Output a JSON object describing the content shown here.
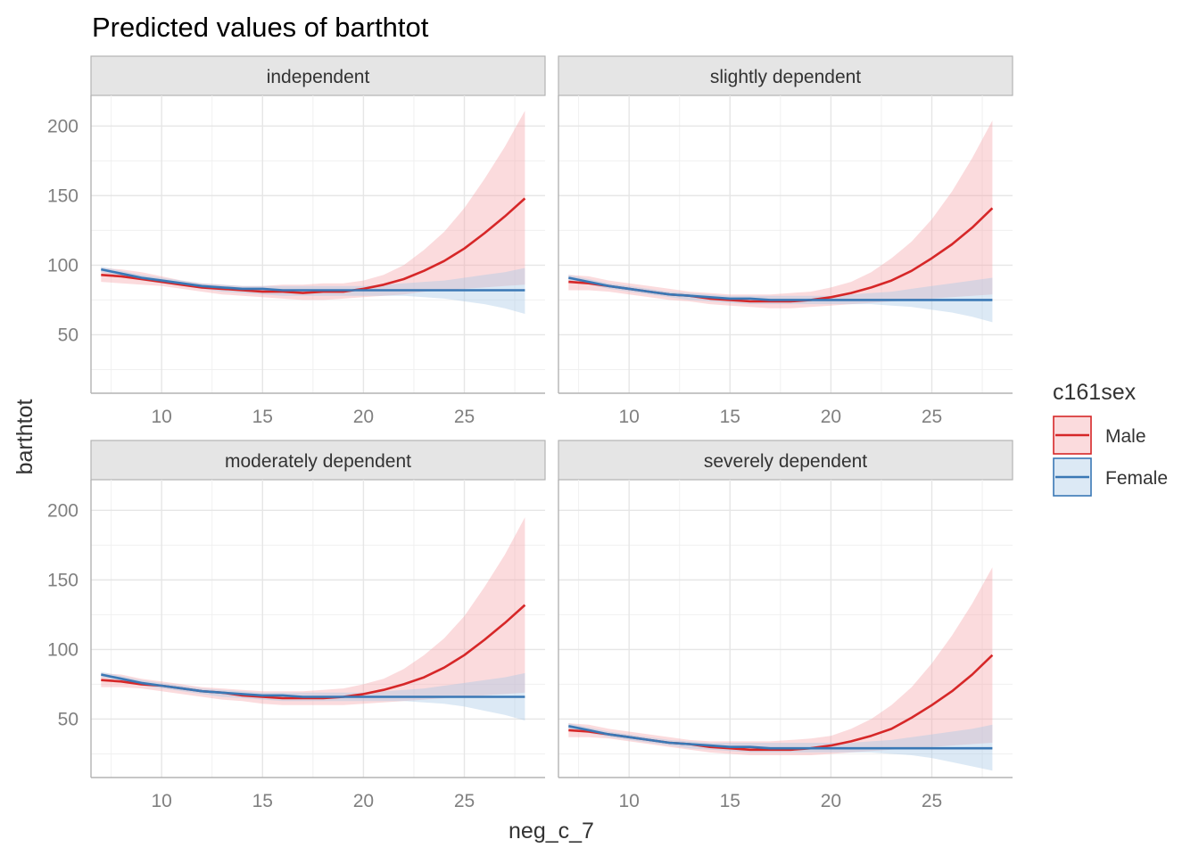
{
  "chart_data": {
    "type": "line",
    "title": "Predicted values of barthtot",
    "xlabel": "neg_c_7",
    "ylabel": "barthtot",
    "xlim": [
      6.5,
      29
    ],
    "ylim": [
      8,
      222
    ],
    "x_ticks": [
      10,
      15,
      20,
      25
    ],
    "y_ticks": [
      50,
      100,
      150,
      200
    ],
    "grid": true,
    "legend": {
      "title": "c161sex",
      "placement": "right",
      "entries": [
        {
          "name": "Male",
          "color": "#d62728"
        },
        {
          "name": "Female",
          "color": "#3a78b5"
        }
      ]
    },
    "band_colors": {
      "Male": "#f4a6aa",
      "Female": "#a8c7e6"
    },
    "x": [
      7,
      8,
      9,
      10,
      11,
      12,
      13,
      14,
      15,
      16,
      17,
      18,
      19,
      20,
      21,
      22,
      23,
      24,
      25,
      26,
      27,
      28
    ],
    "panels": [
      {
        "facet": "independent",
        "series": [
          {
            "name": "Male",
            "values": [
              93,
              92,
              90,
              88,
              86,
              84,
              83,
              82,
              81,
              81,
              80,
              81,
              81,
              83,
              86,
              90,
              96,
              103,
              112,
              123,
              135,
              148
            ],
            "lower": [
              88,
              87,
              86,
              85,
              83,
              81,
              79,
              78,
              77,
              76,
              75,
              75,
              76,
              77,
              78,
              79,
              81,
              82,
              83,
              84,
              85,
              86
            ],
            "upper": [
              98,
              97,
              95,
              92,
              89,
              87,
              86,
              85,
              85,
              86,
              86,
              87,
              87,
              89,
              93,
              100,
              111,
              124,
              141,
              162,
              185,
              211
            ]
          },
          {
            "name": "Female",
            "values": [
              97,
              94,
              91,
              89,
              87,
              85,
              84,
              83,
              83,
              82,
              82,
              82,
              82,
              82,
              82,
              82,
              82,
              82,
              82,
              82,
              82,
              82
            ],
            "lower": [
              95,
              92,
              89,
              87,
              85,
              83,
              81,
              80,
              79,
              78,
              78,
              78,
              78,
              78,
              78,
              78,
              77,
              76,
              74,
              72,
              69,
              65
            ],
            "upper": [
              99,
              96,
              93,
              91,
              89,
              87,
              86,
              85,
              85,
              85,
              85,
              85,
              85,
              85,
              86,
              87,
              88,
              89,
              91,
              93,
              95,
              98
            ]
          }
        ]
      },
      {
        "facet": "slightly dependent",
        "series": [
          {
            "name": "Male",
            "values": [
              88,
              87,
              85,
              83,
              81,
              79,
              78,
              76,
              75,
              74,
              74,
              74,
              75,
              77,
              80,
              84,
              89,
              96,
              105,
              115,
              127,
              141
            ],
            "lower": [
              82,
              82,
              81,
              79,
              77,
              75,
              74,
              72,
              71,
              70,
              69,
              69,
              70,
              71,
              72,
              73,
              74,
              75,
              76,
              77,
              78,
              79
            ],
            "upper": [
              93,
              92,
              89,
              87,
              85,
              83,
              81,
              80,
              79,
              79,
              79,
              80,
              81,
              84,
              88,
              95,
              105,
              117,
              133,
              153,
              177,
              204
            ]
          },
          {
            "name": "Female",
            "values": [
              91,
              88,
              85,
              83,
              81,
              79,
              78,
              77,
              76,
              76,
              75,
              75,
              75,
              75,
              75,
              75,
              75,
              75,
              75,
              75,
              75,
              75
            ],
            "lower": [
              89,
              86,
              83,
              81,
              79,
              77,
              75,
              74,
              73,
              72,
              72,
              72,
              72,
              72,
              72,
              72,
              71,
              70,
              68,
              66,
              63,
              59
            ],
            "upper": [
              93,
              90,
              87,
              85,
              83,
              81,
              80,
              79,
              78,
              78,
              78,
              78,
              78,
              78,
              79,
              80,
              81,
              83,
              85,
              87,
              89,
              91
            ]
          }
        ]
      },
      {
        "facet": "moderately dependent",
        "series": [
          {
            "name": "Male",
            "values": [
              78,
              77,
              75,
              74,
              72,
              70,
              69,
              67,
              66,
              65,
              65,
              65,
              66,
              68,
              71,
              75,
              80,
              87,
              96,
              107,
              119,
              132
            ],
            "lower": [
              73,
              73,
              72,
              70,
              68,
              66,
              64,
              63,
              61,
              60,
              60,
              60,
              60,
              61,
              62,
              63,
              64,
              65,
              66,
              67,
              68,
              69
            ],
            "upper": [
              83,
              82,
              79,
              77,
              75,
              73,
              72,
              71,
              70,
              70,
              70,
              71,
              72,
              75,
              79,
              86,
              96,
              108,
              124,
              145,
              168,
              195
            ]
          },
          {
            "name": "Female",
            "values": [
              82,
              79,
              76,
              74,
              72,
              70,
              69,
              68,
              67,
              67,
              66,
              66,
              66,
              66,
              66,
              66,
              66,
              66,
              66,
              66,
              66,
              66
            ],
            "lower": [
              80,
              77,
              74,
              72,
              70,
              68,
              66,
              65,
              64,
              63,
              63,
              63,
              63,
              63,
              63,
              63,
              62,
              61,
              59,
              56,
              53,
              49
            ],
            "upper": [
              84,
              81,
              78,
              76,
              74,
              72,
              71,
              70,
              69,
              69,
              69,
              69,
              69,
              69,
              70,
              71,
              72,
              74,
              76,
              78,
              80,
              83
            ]
          }
        ]
      },
      {
        "facet": "severely dependent",
        "series": [
          {
            "name": "Male",
            "values": [
              42,
              41,
              39,
              37,
              35,
              33,
              32,
              30,
              29,
              28,
              28,
              28,
              29,
              31,
              34,
              38,
              43,
              51,
              60,
              70,
              82,
              96
            ],
            "lower": [
              37,
              37,
              36,
              34,
              32,
              30,
              28,
              26,
              25,
              24,
              24,
              24,
              24,
              25,
              26,
              27,
              28,
              29,
              30,
              31,
              32,
              33
            ],
            "upper": [
              47,
              46,
              43,
              41,
              39,
              37,
              35,
              34,
              34,
              34,
              34,
              35,
              36,
              38,
              43,
              50,
              60,
              73,
              90,
              110,
              133,
              159
            ]
          },
          {
            "name": "Female",
            "values": [
              45,
              42,
              39,
              37,
              35,
              33,
              32,
              31,
              30,
              30,
              29,
              29,
              29,
              29,
              29,
              29,
              29,
              29,
              29,
              29,
              29,
              29
            ],
            "lower": [
              43,
              40,
              37,
              35,
              33,
              31,
              29,
              28,
              27,
              26,
              26,
              26,
              26,
              26,
              26,
              26,
              25,
              24,
              22,
              19,
              16,
              13
            ],
            "upper": [
              47,
              44,
              41,
              39,
              37,
              35,
              34,
              33,
              33,
              33,
              33,
              33,
              33,
              33,
              33,
              34,
              35,
              37,
              39,
              41,
              43,
              46
            ]
          }
        ]
      }
    ]
  }
}
